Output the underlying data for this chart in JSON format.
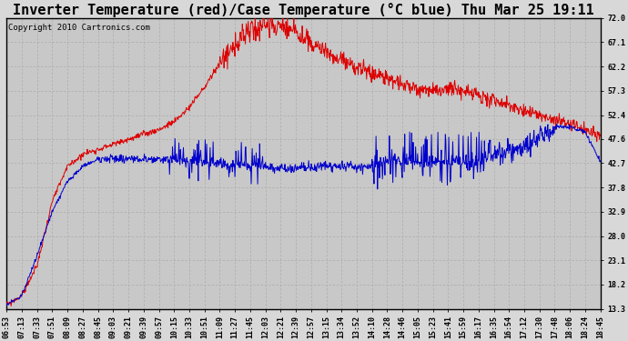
{
  "title": "Inverter Temperature (red)/Case Temperature (°C blue) Thu Mar 25 19:11",
  "copyright": "Copyright 2010 Cartronics.com",
  "ymin": 13.3,
  "ymax": 72.0,
  "yticks": [
    72.0,
    67.1,
    62.2,
    57.3,
    52.4,
    47.6,
    42.7,
    37.8,
    32.9,
    28.0,
    23.1,
    18.2,
    13.3
  ],
  "xtick_labels": [
    "06:53",
    "07:13",
    "07:33",
    "07:51",
    "08:09",
    "08:27",
    "08:45",
    "09:03",
    "09:21",
    "09:39",
    "09:57",
    "10:15",
    "10:33",
    "10:51",
    "11:09",
    "11:27",
    "11:45",
    "12:03",
    "12:21",
    "12:39",
    "12:57",
    "13:15",
    "13:34",
    "13:52",
    "14:10",
    "14:28",
    "14:46",
    "15:05",
    "15:23",
    "15:41",
    "15:59",
    "16:17",
    "16:35",
    "16:54",
    "17:12",
    "17:30",
    "17:48",
    "18:06",
    "18:24",
    "18:45"
  ],
  "background_color": "#d8d8d8",
  "plot_bg_color": "#c8c8c8",
  "grid_color": "#b0b0b0",
  "red_color": "#dd0000",
  "blue_color": "#0000cc",
  "title_fontsize": 11,
  "copyright_fontsize": 6.5,
  "tick_fontsize": 6.0,
  "figsize": [
    6.9,
    3.75
  ],
  "dpi": 100
}
